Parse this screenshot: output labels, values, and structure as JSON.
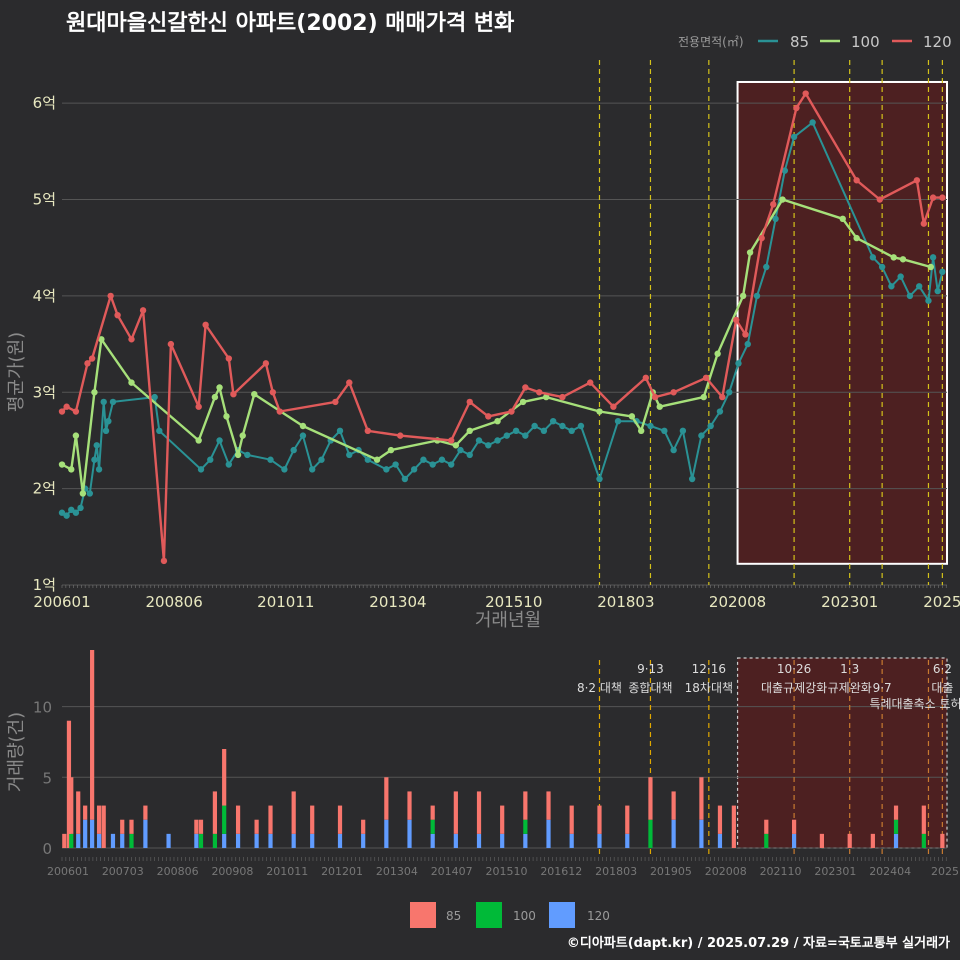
{
  "title": "원대마을신갈한신 아파트(2002) 매매가격 변화",
  "legend_title": "전용면적(㎡)",
  "caption": "©디아파트(dapt.kr) / 2025.07.29 / 자료=국토교통부 실거래가",
  "colors": {
    "s85": "#2a9295",
    "s100": "#a6e07a",
    "s120": "#e05a5a",
    "b85": "#f8766d",
    "b100": "#00ba38",
    "b120": "#619cff",
    "policy": "#d4c21a",
    "shade": "#5a1e1e",
    "box": "#ffffff"
  },
  "chart_data": [
    {
      "type": "line",
      "ylabel": "평균가(원)",
      "xlabel": "거래년월",
      "yticks": [
        {
          "v": 1,
          "label": "1억"
        },
        {
          "v": 2,
          "label": "2억"
        },
        {
          "v": 3,
          "label": "3억"
        },
        {
          "v": 4,
          "label": "4억"
        },
        {
          "v": 5,
          "label": "5억"
        },
        {
          "v": 6,
          "label": "6억"
        }
      ],
      "ylim": [
        1,
        6.5
      ],
      "xticks": [
        {
          "v": 2006.0,
          "label": "200601"
        },
        {
          "v": 2008.42,
          "label": "200806"
        },
        {
          "v": 2010.83,
          "label": "201011"
        },
        {
          "v": 2013.25,
          "label": "201304"
        },
        {
          "v": 2015.75,
          "label": "201510"
        },
        {
          "v": 2018.17,
          "label": "201803"
        },
        {
          "v": 2020.58,
          "label": "202008"
        },
        {
          "v": 2023.0,
          "label": "202301"
        },
        {
          "v": 2025.0,
          "label": "2025"
        }
      ],
      "xlim": [
        2006.0,
        2025.1
      ],
      "policy_lines": [
        2017.6,
        2018.7,
        2019.96,
        2021.8,
        2023.0,
        2023.7,
        2024.7,
        2025.0
      ],
      "highlight": [
        2020.58,
        2025.1
      ],
      "series": [
        {
          "name": "85",
          "points": [
            [
              2006.0,
              1.75
            ],
            [
              2006.1,
              1.72
            ],
            [
              2006.2,
              1.78
            ],
            [
              2006.3,
              1.75
            ],
            [
              2006.4,
              1.8
            ],
            [
              2006.5,
              2.0
            ],
            [
              2006.6,
              1.95
            ],
            [
              2006.7,
              2.3
            ],
            [
              2006.75,
              2.45
            ],
            [
              2006.8,
              2.2
            ],
            [
              2006.9,
              2.9
            ],
            [
              2006.95,
              2.6
            ],
            [
              2007.0,
              2.7
            ],
            [
              2007.1,
              2.9
            ],
            [
              2008.0,
              2.95
            ],
            [
              2008.1,
              2.6
            ],
            [
              2009.0,
              2.2
            ],
            [
              2009.2,
              2.3
            ],
            [
              2009.4,
              2.5
            ],
            [
              2009.6,
              2.25
            ],
            [
              2009.8,
              2.4
            ],
            [
              2010.0,
              2.35
            ],
            [
              2010.5,
              2.3
            ],
            [
              2010.8,
              2.2
            ],
            [
              2011.0,
              2.4
            ],
            [
              2011.2,
              2.55
            ],
            [
              2011.4,
              2.2
            ],
            [
              2011.6,
              2.3
            ],
            [
              2011.8,
              2.5
            ],
            [
              2012.0,
              2.6
            ],
            [
              2012.2,
              2.35
            ],
            [
              2012.4,
              2.4
            ],
            [
              2012.6,
              2.3
            ],
            [
              2013.0,
              2.2
            ],
            [
              2013.2,
              2.25
            ],
            [
              2013.4,
              2.1
            ],
            [
              2013.6,
              2.2
            ],
            [
              2013.8,
              2.3
            ],
            [
              2014.0,
              2.25
            ],
            [
              2014.2,
              2.3
            ],
            [
              2014.4,
              2.25
            ],
            [
              2014.6,
              2.4
            ],
            [
              2014.8,
              2.35
            ],
            [
              2015.0,
              2.5
            ],
            [
              2015.2,
              2.45
            ],
            [
              2015.4,
              2.5
            ],
            [
              2015.6,
              2.55
            ],
            [
              2015.8,
              2.6
            ],
            [
              2016.0,
              2.55
            ],
            [
              2016.2,
              2.65
            ],
            [
              2016.4,
              2.6
            ],
            [
              2016.6,
              2.7
            ],
            [
              2016.8,
              2.65
            ],
            [
              2017.0,
              2.6
            ],
            [
              2017.2,
              2.65
            ],
            [
              2017.6,
              2.1
            ],
            [
              2018.0,
              2.7
            ],
            [
              2018.4,
              2.7
            ],
            [
              2018.7,
              2.65
            ],
            [
              2019.0,
              2.6
            ],
            [
              2019.2,
              2.4
            ],
            [
              2019.4,
              2.6
            ],
            [
              2019.6,
              2.1
            ],
            [
              2019.8,
              2.55
            ],
            [
              2020.0,
              2.65
            ],
            [
              2020.2,
              2.8
            ],
            [
              2020.4,
              3.0
            ],
            [
              2020.6,
              3.3
            ],
            [
              2020.8,
              3.5
            ],
            [
              2021.0,
              4.0
            ],
            [
              2021.2,
              4.3
            ],
            [
              2021.4,
              4.8
            ],
            [
              2021.6,
              5.3
            ],
            [
              2021.8,
              5.65
            ],
            [
              2022.2,
              5.8
            ],
            [
              2023.5,
              4.4
            ],
            [
              2023.7,
              4.3
            ],
            [
              2023.9,
              4.1
            ],
            [
              2024.1,
              4.2
            ],
            [
              2024.3,
              4.0
            ],
            [
              2024.5,
              4.1
            ],
            [
              2024.7,
              3.95
            ],
            [
              2024.8,
              4.4
            ],
            [
              2024.9,
              4.05
            ],
            [
              2025.0,
              4.25
            ]
          ]
        },
        {
          "name": "100",
          "points": [
            [
              2006.0,
              2.25
            ],
            [
              2006.2,
              2.2
            ],
            [
              2006.3,
              2.55
            ],
            [
              2006.45,
              1.95
            ],
            [
              2006.7,
              3.0
            ],
            [
              2006.85,
              3.55
            ],
            [
              2007.5,
              3.1
            ],
            [
              2008.95,
              2.5
            ],
            [
              2009.3,
              2.95
            ],
            [
              2009.4,
              3.05
            ],
            [
              2009.55,
              2.75
            ],
            [
              2009.8,
              2.35
            ],
            [
              2009.9,
              2.55
            ],
            [
              2010.15,
              2.98
            ],
            [
              2011.2,
              2.65
            ],
            [
              2012.8,
              2.3
            ],
            [
              2013.1,
              2.4
            ],
            [
              2014.1,
              2.5
            ],
            [
              2014.5,
              2.45
            ],
            [
              2014.8,
              2.6
            ],
            [
              2015.4,
              2.7
            ],
            [
              2015.95,
              2.9
            ],
            [
              2016.45,
              2.95
            ],
            [
              2017.6,
              2.8
            ],
            [
              2018.3,
              2.75
            ],
            [
              2018.5,
              2.6
            ],
            [
              2018.75,
              3.0
            ],
            [
              2018.9,
              2.85
            ],
            [
              2019.85,
              2.95
            ],
            [
              2020.15,
              3.4
            ],
            [
              2020.7,
              4.0
            ],
            [
              2020.85,
              4.45
            ],
            [
              2021.55,
              5.0
            ],
            [
              2022.85,
              4.8
            ],
            [
              2023.15,
              4.6
            ],
            [
              2023.95,
              4.4
            ],
            [
              2024.15,
              4.38
            ],
            [
              2024.75,
              4.3
            ]
          ]
        },
        {
          "name": "120",
          "points": [
            [
              2006.0,
              2.8
            ],
            [
              2006.1,
              2.85
            ],
            [
              2006.3,
              2.8
            ],
            [
              2006.55,
              3.3
            ],
            [
              2006.65,
              3.35
            ],
            [
              2007.05,
              4.0
            ],
            [
              2007.2,
              3.8
            ],
            [
              2007.5,
              3.55
            ],
            [
              2007.75,
              3.85
            ],
            [
              2008.2,
              1.25
            ],
            [
              2008.35,
              3.5
            ],
            [
              2008.95,
              2.85
            ],
            [
              2009.1,
              3.7
            ],
            [
              2009.6,
              3.35
            ],
            [
              2009.7,
              2.98
            ],
            [
              2010.4,
              3.3
            ],
            [
              2010.55,
              3.0
            ],
            [
              2010.7,
              2.8
            ],
            [
              2011.9,
              2.9
            ],
            [
              2012.2,
              3.1
            ],
            [
              2012.6,
              2.6
            ],
            [
              2013.3,
              2.55
            ],
            [
              2014.4,
              2.5
            ],
            [
              2014.8,
              2.9
            ],
            [
              2015.2,
              2.75
            ],
            [
              2015.7,
              2.8
            ],
            [
              2016.0,
              3.05
            ],
            [
              2016.3,
              3.0
            ],
            [
              2016.8,
              2.95
            ],
            [
              2017.4,
              3.1
            ],
            [
              2017.9,
              2.85
            ],
            [
              2018.6,
              3.15
            ],
            [
              2018.8,
              2.95
            ],
            [
              2019.2,
              3.0
            ],
            [
              2019.9,
              3.15
            ],
            [
              2020.25,
              2.95
            ],
            [
              2020.55,
              3.75
            ],
            [
              2020.75,
              3.6
            ],
            [
              2021.1,
              4.6
            ],
            [
              2021.35,
              4.95
            ],
            [
              2021.85,
              5.95
            ],
            [
              2022.05,
              6.1
            ],
            [
              2023.15,
              5.2
            ],
            [
              2023.65,
              5.0
            ],
            [
              2024.45,
              5.2
            ],
            [
              2024.6,
              4.75
            ],
            [
              2024.8,
              5.02
            ],
            [
              2025.0,
              5.02
            ]
          ]
        }
      ]
    },
    {
      "type": "bar",
      "ylabel": "거래량(건)",
      "yticks": [
        0,
        5,
        10
      ],
      "ylim": [
        0,
        14
      ],
      "xticks": [
        "200601",
        "200703",
        "200806",
        "200908",
        "201011",
        "201201",
        "201304",
        "201407",
        "201510",
        "201612",
        "201803",
        "201905",
        "202008",
        "202110",
        "202301",
        "202404",
        "2025"
      ],
      "series_names": [
        "85",
        "100",
        "120"
      ],
      "bars": [
        [
          2006.05,
          1,
          0,
          0
        ],
        [
          2006.15,
          9,
          0,
          0
        ],
        [
          2006.2,
          4,
          1,
          0
        ],
        [
          2006.35,
          3,
          0,
          1
        ],
        [
          2006.5,
          1,
          0,
          2
        ],
        [
          2006.65,
          12,
          0,
          2
        ],
        [
          2006.8,
          2,
          0,
          1
        ],
        [
          2006.9,
          3,
          0,
          0
        ],
        [
          2007.1,
          0,
          0,
          1
        ],
        [
          2007.3,
          1,
          0,
          1
        ],
        [
          2007.5,
          1,
          1,
          0
        ],
        [
          2007.8,
          1,
          0,
          2
        ],
        [
          2008.3,
          0,
          0,
          1
        ],
        [
          2008.9,
          1,
          0,
          1
        ],
        [
          2009.0,
          1,
          1,
          0
        ],
        [
          2009.3,
          3,
          1,
          0
        ],
        [
          2009.5,
          4,
          2,
          1
        ],
        [
          2009.8,
          2,
          0,
          1
        ],
        [
          2010.2,
          1,
          0,
          1
        ],
        [
          2010.5,
          2,
          0,
          1
        ],
        [
          2011.0,
          3,
          0,
          1
        ],
        [
          2011.4,
          2,
          0,
          1
        ],
        [
          2012.0,
          2,
          0,
          1
        ],
        [
          2012.5,
          1,
          0,
          1
        ],
        [
          2013.0,
          3,
          0,
          2
        ],
        [
          2013.5,
          2,
          0,
          2
        ],
        [
          2014.0,
          1,
          1,
          1
        ],
        [
          2014.5,
          3,
          0,
          1
        ],
        [
          2015.0,
          3,
          0,
          1
        ],
        [
          2015.5,
          2,
          0,
          1
        ],
        [
          2016.0,
          2,
          1,
          1
        ],
        [
          2016.5,
          2,
          0,
          2
        ],
        [
          2017.0,
          2,
          0,
          1
        ],
        [
          2017.6,
          2,
          0,
          1
        ],
        [
          2018.2,
          2,
          0,
          1
        ],
        [
          2018.7,
          3,
          2,
          0
        ],
        [
          2019.2,
          2,
          0,
          2
        ],
        [
          2019.8,
          3,
          0,
          2
        ],
        [
          2020.2,
          2,
          0,
          1
        ],
        [
          2020.5,
          3,
          0,
          0
        ],
        [
          2021.2,
          1,
          1,
          0
        ],
        [
          2021.8,
          1,
          0,
          1
        ],
        [
          2022.4,
          1,
          0,
          0
        ],
        [
          2023.0,
          1,
          0,
          0
        ],
        [
          2023.5,
          1,
          0,
          0
        ],
        [
          2024.0,
          1,
          1,
          1
        ],
        [
          2024.6,
          2,
          1,
          0
        ],
        [
          2025.0,
          1,
          0,
          0
        ]
      ],
      "policy_labels": [
        {
          "v": 2017.6,
          "l1": "",
          "l2": "8·2 대책"
        },
        {
          "v": 2018.7,
          "l1": "9·13",
          "l2": "종합대책"
        },
        {
          "v": 2019.96,
          "l1": "12·16",
          "l2": "18차대책"
        },
        {
          "v": 2021.8,
          "l1": "10·26",
          "l2": "대출규제강화"
        },
        {
          "v": 2023.0,
          "l1": "1·3",
          "l2": "규제완화"
        },
        {
          "v": 2023.7,
          "l1": "",
          "l2": "9·7"
        },
        {
          "v": 2024.7,
          "l1": "",
          "l2": "특례대출축소 토허제 해"
        },
        {
          "v": 2025.0,
          "l1": "6·2",
          "l2": "대출"
        }
      ]
    }
  ]
}
